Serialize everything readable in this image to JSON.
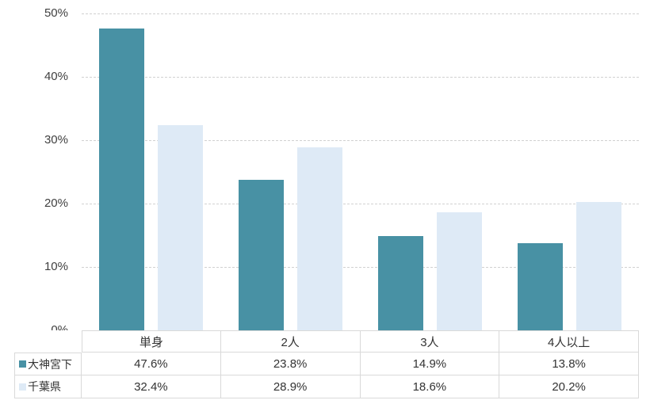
{
  "chart_data": {
    "type": "bar",
    "title": "",
    "xlabel": "",
    "ylabel": "",
    "categories": [
      "単身",
      "2人",
      "3人",
      "4人以上"
    ],
    "series": [
      {
        "name": "大神宮下",
        "color": "#4891A4",
        "values": [
          47.6,
          23.8,
          14.9,
          13.8
        ],
        "labels": [
          "47.6%",
          "23.8%",
          "14.9%",
          "13.8%"
        ]
      },
      {
        "name": "千葉県",
        "color": "#DEEAF6",
        "values": [
          32.4,
          28.9,
          18.6,
          20.2
        ],
        "labels": [
          "32.4%",
          "28.9%",
          "18.6%",
          "20.2%"
        ]
      }
    ],
    "ylim": [
      0,
      50
    ],
    "yticks": [
      0,
      10,
      20,
      30,
      40,
      50
    ],
    "ytick_labels": [
      "0%",
      "10%",
      "20%",
      "30%",
      "40%",
      "50%"
    ],
    "grid": true,
    "gridline_style": "dashed",
    "legend_position": "data-table-left"
  },
  "colors": {
    "series1": "#4891A4",
    "series2": "#DEEAF6",
    "gridline": "#D1D1D1",
    "table_border": "#D9D9D9",
    "axis_text": "#404040",
    "background": "#FFFFFF"
  }
}
